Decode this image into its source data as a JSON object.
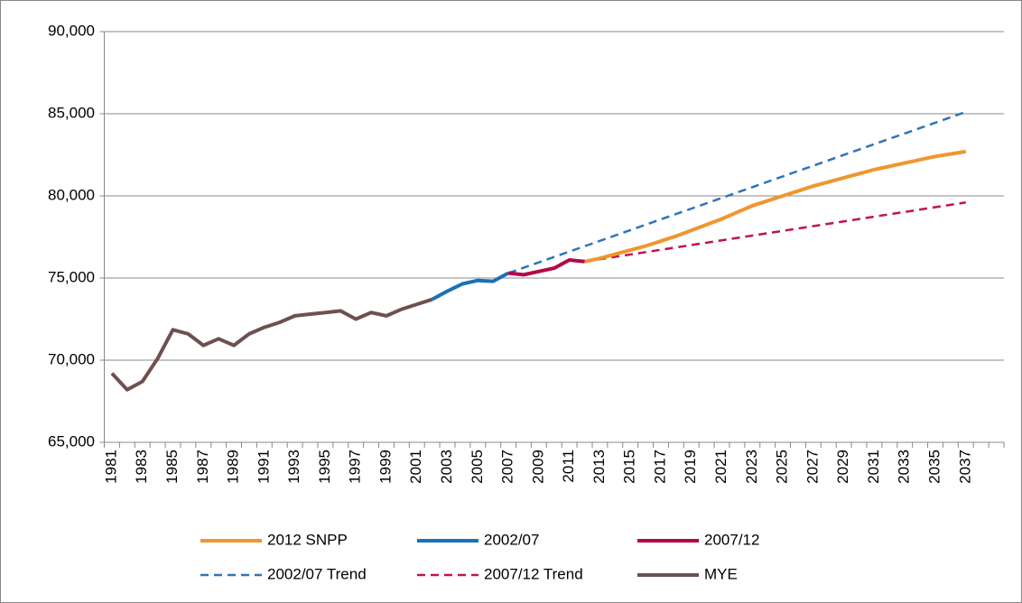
{
  "chart_data": {
    "type": "line",
    "categories": [
      "1981",
      null,
      "1983",
      null,
      "1985",
      null,
      "1987",
      null,
      "1989",
      null,
      "1991",
      null,
      "1993",
      null,
      "1995",
      null,
      "1997",
      null,
      "1999",
      null,
      "2001",
      null,
      "2003",
      null,
      "2005",
      null,
      "2007",
      null,
      "2009",
      null,
      "2011",
      null,
      "2013",
      null,
      "2015",
      null,
      "2017",
      null,
      "2019",
      null,
      "2021",
      null,
      "2023",
      null,
      "2025",
      null,
      "2027",
      null,
      "2029",
      null,
      "2031",
      null,
      "2033",
      null,
      "2035",
      null,
      "2037",
      null,
      null
    ],
    "ylim": [
      65000,
      90000
    ],
    "yticks": [
      {
        "value": 65000,
        "label": "65,000"
      },
      {
        "value": 70000,
        "label": "70,000"
      },
      {
        "value": 75000,
        "label": "75,000"
      },
      {
        "value": 80000,
        "label": "80,000"
      },
      {
        "value": 85000,
        "label": "85,000"
      },
      {
        "value": 90000,
        "label": "90,000"
      }
    ],
    "grid": true,
    "legend": "bottom",
    "series": [
      {
        "name": "2012 SNPP",
        "color": "#f0962e",
        "dashed": false,
        "values": [
          null,
          null,
          null,
          null,
          null,
          null,
          null,
          null,
          null,
          null,
          null,
          null,
          null,
          null,
          null,
          null,
          null,
          null,
          null,
          null,
          null,
          null,
          null,
          null,
          null,
          null,
          null,
          null,
          null,
          null,
          null,
          76000,
          76200,
          76450,
          76700,
          76950,
          77250,
          77550,
          77900,
          78250,
          78600,
          79000,
          79400,
          79700,
          80000,
          80300,
          80600,
          80850,
          81100,
          81350,
          81600,
          81800,
          82000,
          82200,
          82400,
          82550,
          82700,
          null,
          null
        ]
      },
      {
        "name": "2002/07",
        "color": "#1a72b8",
        "dashed": false,
        "values": [
          null,
          null,
          null,
          null,
          null,
          null,
          null,
          null,
          null,
          null,
          null,
          null,
          null,
          null,
          null,
          null,
          null,
          null,
          null,
          null,
          null,
          73700,
          74200,
          74650,
          74850,
          74800,
          75300,
          null,
          null,
          null,
          null,
          null,
          null,
          null,
          null,
          null,
          null,
          null,
          null,
          null,
          null,
          null,
          null,
          null,
          null,
          null,
          null,
          null,
          null,
          null,
          null,
          null,
          null,
          null,
          null,
          null,
          null,
          null,
          null
        ]
      },
      {
        "name": "2007/12",
        "color": "#b3084a",
        "dashed": false,
        "values": [
          null,
          null,
          null,
          null,
          null,
          null,
          null,
          null,
          null,
          null,
          null,
          null,
          null,
          null,
          null,
          null,
          null,
          null,
          null,
          null,
          null,
          null,
          null,
          null,
          null,
          null,
          75300,
          75200,
          75400,
          75600,
          76100,
          76000,
          null,
          null,
          null,
          null,
          null,
          null,
          null,
          null,
          null,
          null,
          null,
          null,
          null,
          null,
          null,
          null,
          null,
          null,
          null,
          null,
          null,
          null,
          null,
          null,
          null,
          null,
          null
        ]
      },
      {
        "name": "2002/07 Trend",
        "color": "#2e75b6",
        "dashed": true,
        "values": [
          null,
          null,
          null,
          null,
          null,
          null,
          null,
          null,
          null,
          null,
          null,
          null,
          null,
          null,
          null,
          null,
          null,
          null,
          null,
          null,
          null,
          null,
          null,
          null,
          null,
          null,
          75300,
          75627,
          75954,
          76281,
          76608,
          76935,
          77262,
          77589,
          77916,
          78243,
          78570,
          78897,
          79224,
          79551,
          79878,
          80205,
          80532,
          80859,
          81186,
          81513,
          81840,
          82167,
          82494,
          82821,
          83148,
          83475,
          83802,
          84129,
          84456,
          84783,
          85110,
          null,
          null
        ]
      },
      {
        "name": "2007/12 Trend",
        "color": "#c0105a",
        "dashed": true,
        "values": [
          null,
          null,
          null,
          null,
          null,
          null,
          null,
          null,
          null,
          null,
          null,
          null,
          null,
          null,
          null,
          null,
          null,
          null,
          null,
          null,
          null,
          null,
          null,
          null,
          null,
          null,
          null,
          null,
          null,
          null,
          null,
          76000,
          76144,
          76288,
          76432,
          76576,
          76720,
          76864,
          77008,
          77152,
          77296,
          77440,
          77584,
          77728,
          77872,
          78016,
          78160,
          78304,
          78448,
          78592,
          78736,
          78880,
          79024,
          79168,
          79312,
          79456,
          79600,
          null,
          null
        ]
      },
      {
        "name": "MYE",
        "color": "#6e5050",
        "dashed": false,
        "values": [
          69200,
          68200,
          68700,
          70100,
          71850,
          71600,
          70900,
          71300,
          70900,
          71600,
          72000,
          72300,
          72700,
          72800,
          72900,
          73000,
          72500,
          72900,
          72700,
          73100,
          73400,
          73700,
          null,
          null,
          null,
          null,
          null,
          null,
          null,
          null,
          null,
          null,
          null,
          null,
          null,
          null,
          null,
          null,
          null,
          null,
          null,
          null,
          null,
          null,
          null,
          null,
          null,
          null,
          null,
          null,
          null,
          null,
          null,
          null,
          null,
          null,
          null,
          null,
          null
        ]
      }
    ]
  }
}
